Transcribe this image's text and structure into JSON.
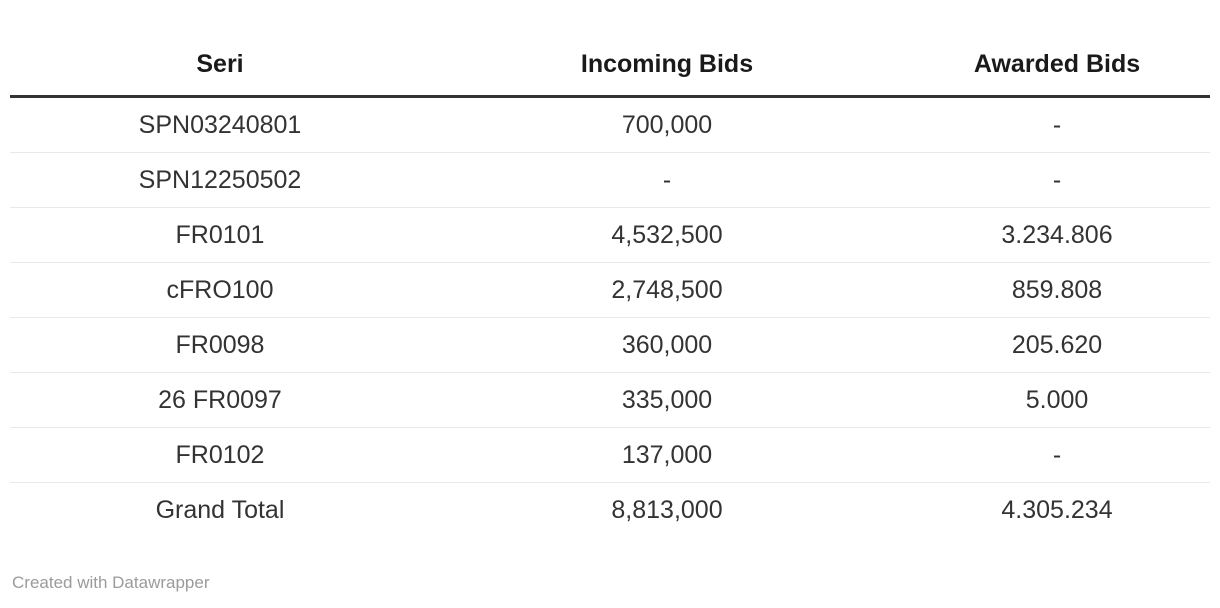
{
  "table": {
    "columns": [
      {
        "label": "Seri"
      },
      {
        "label": "Incoming Bids"
      },
      {
        "label": "Awarded Bids"
      }
    ],
    "rows": [
      {
        "seri": "SPN03240801",
        "incoming": "700,000",
        "awarded": "-"
      },
      {
        "seri": "SPN12250502",
        "incoming": "-",
        "awarded": "-"
      },
      {
        "seri": "FR0101",
        "incoming": "4,532,500",
        "awarded": "3.234.806"
      },
      {
        "seri": "cFRO100",
        "incoming": "2,748,500",
        "awarded": "859.808"
      },
      {
        "seri": "FR0098",
        "incoming": "360,000",
        "awarded": "205.620"
      },
      {
        "seri": "26 FR0097",
        "incoming": "335,000",
        "awarded": "5.000"
      },
      {
        "seri": "FR0102",
        "incoming": "137,000",
        "awarded": "-"
      },
      {
        "seri": "Grand Total",
        "incoming": "8,813,000",
        "awarded": "4.305.234"
      }
    ]
  },
  "footer": {
    "credit": "Created with Datawrapper"
  },
  "colors": {
    "header_text": "#1a1a1a",
    "body_text": "#333333",
    "header_rule": "#333333",
    "row_separator": "#e9e9e9",
    "credit_text": "#9b9b9b",
    "background": "#ffffff"
  },
  "chart_data": {
    "type": "table",
    "title": "",
    "columns": [
      "Seri",
      "Incoming Bids",
      "Awarded Bids"
    ],
    "rows": [
      [
        "SPN03240801",
        "700,000",
        "-"
      ],
      [
        "SPN12250502",
        "-",
        "-"
      ],
      [
        "FR0101",
        "4,532,500",
        "3.234.806"
      ],
      [
        "cFRO100",
        "2,748,500",
        "859.808"
      ],
      [
        "FR0098",
        "360,000",
        "205.620"
      ],
      [
        "26 FR0097",
        "335,000",
        "5.000"
      ],
      [
        "FR0102",
        "137,000",
        "-"
      ],
      [
        "Grand Total",
        "8,813,000",
        "4.305.234"
      ]
    ],
    "incoming_bids_values": [
      700000,
      null,
      4532500,
      2748500,
      360000,
      335000,
      137000,
      8813000
    ],
    "awarded_bids_values": [
      null,
      null,
      3234806,
      859808,
      205620,
      5000,
      null,
      4305234
    ],
    "layout": {
      "alignment": "center",
      "grid": "horizontal-rules-only",
      "legend": "none"
    },
    "credit": "Created with Datawrapper"
  }
}
